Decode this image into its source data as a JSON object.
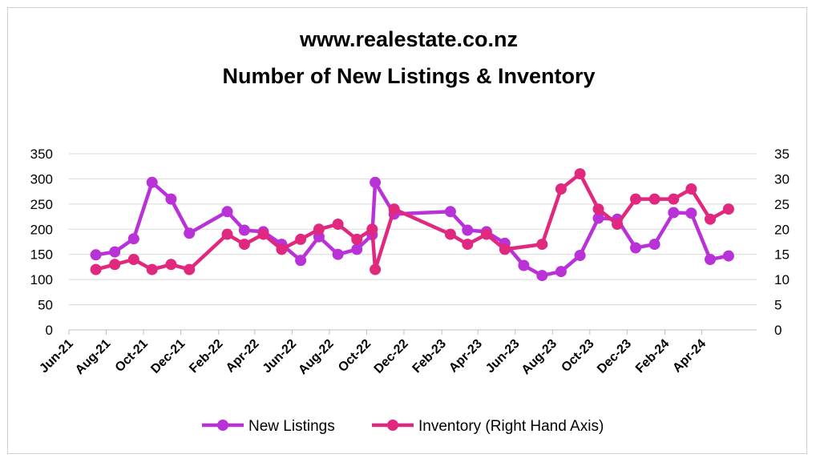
{
  "chart_data": {
    "type": "line",
    "title": "www.realestate.co.nz",
    "subtitle": "Number of New Listings & Inventory",
    "y_left": {
      "min": 0,
      "max": 350,
      "step": 50,
      "ticks": [
        "0",
        "50",
        "100",
        "150",
        "200",
        "250",
        "300",
        "350"
      ]
    },
    "y_right": {
      "min": 0,
      "max": 35,
      "step": 5,
      "ticks": [
        "0",
        "5",
        "10",
        "15",
        "20",
        "25",
        "30",
        "35"
      ]
    },
    "x_ticks": [
      "Jun-21",
      "Aug-21",
      "Oct-21",
      "Dec-21",
      "Feb-22",
      "Apr-22",
      "Jun-22",
      "Aug-22",
      "Oct-22",
      "Dec-22",
      "Feb-23",
      "Apr-23",
      "Jun-23",
      "Aug-23",
      "Oct-23",
      "Dec-23",
      "Feb-24",
      "Apr-24"
    ],
    "x_range": [
      "2021-06-01",
      "2024-06-30"
    ],
    "grid": true,
    "legend_position": "bottom",
    "series": [
      {
        "name": "New Listings",
        "axis": "left",
        "color": "#B832D8",
        "points": [
          [
            "2021-07-15",
            149
          ],
          [
            "2021-08-15",
            155
          ],
          [
            "2021-09-15",
            181
          ],
          [
            "2021-10-15",
            293
          ],
          [
            "2021-11-15",
            260
          ],
          [
            "2021-12-15",
            192
          ],
          [
            "2022-02-15",
            235
          ],
          [
            "2022-03-15",
            198
          ],
          [
            "2022-04-15",
            195
          ],
          [
            "2022-05-15",
            170
          ],
          [
            "2022-06-15",
            138
          ],
          [
            "2022-07-15",
            185
          ],
          [
            "2022-08-15",
            150
          ],
          [
            "2022-09-15",
            160
          ],
          [
            "2022-10-10",
            189
          ],
          [
            "2022-10-15",
            293
          ],
          [
            "2022-11-15",
            230
          ],
          [
            "2023-02-15",
            235
          ],
          [
            "2023-03-15",
            198
          ],
          [
            "2023-04-15",
            195
          ],
          [
            "2023-05-15",
            172
          ],
          [
            "2023-06-15",
            128
          ],
          [
            "2023-07-15",
            108
          ],
          [
            "2023-08-15",
            116
          ],
          [
            "2023-09-15",
            148
          ],
          [
            "2023-10-15",
            222
          ],
          [
            "2023-11-15",
            220
          ],
          [
            "2023-12-15",
            163
          ],
          [
            "2024-01-15",
            170
          ],
          [
            "2024-02-15",
            233
          ],
          [
            "2024-03-15",
            232
          ],
          [
            "2024-04-15",
            140
          ],
          [
            "2024-05-15",
            147
          ]
        ]
      },
      {
        "name": "Inventory (Right Hand Axis)",
        "axis": "right",
        "color": "#E0287F",
        "points": [
          [
            "2021-07-15",
            12
          ],
          [
            "2021-08-15",
            13
          ],
          [
            "2021-09-15",
            14
          ],
          [
            "2021-10-15",
            12
          ],
          [
            "2021-11-15",
            13
          ],
          [
            "2021-12-15",
            12
          ],
          [
            "2022-02-15",
            19
          ],
          [
            "2022-03-15",
            17
          ],
          [
            "2022-04-15",
            19
          ],
          [
            "2022-05-15",
            16
          ],
          [
            "2022-06-15",
            18
          ],
          [
            "2022-07-15",
            20
          ],
          [
            "2022-08-15",
            21
          ],
          [
            "2022-09-15",
            18
          ],
          [
            "2022-10-10",
            20
          ],
          [
            "2022-10-15",
            12
          ],
          [
            "2022-11-15",
            24
          ],
          [
            "2023-02-15",
            19
          ],
          [
            "2023-03-15",
            17
          ],
          [
            "2023-04-15",
            19
          ],
          [
            "2023-05-15",
            16
          ],
          [
            "2023-07-15",
            17
          ],
          [
            "2023-08-15",
            28
          ],
          [
            "2023-09-15",
            31
          ],
          [
            "2023-10-15",
            24
          ],
          [
            "2023-11-15",
            21
          ],
          [
            "2023-12-15",
            26
          ],
          [
            "2024-01-15",
            26
          ],
          [
            "2024-02-15",
            26
          ],
          [
            "2024-03-15",
            28
          ],
          [
            "2024-04-15",
            22
          ],
          [
            "2024-05-15",
            24
          ]
        ]
      }
    ]
  }
}
